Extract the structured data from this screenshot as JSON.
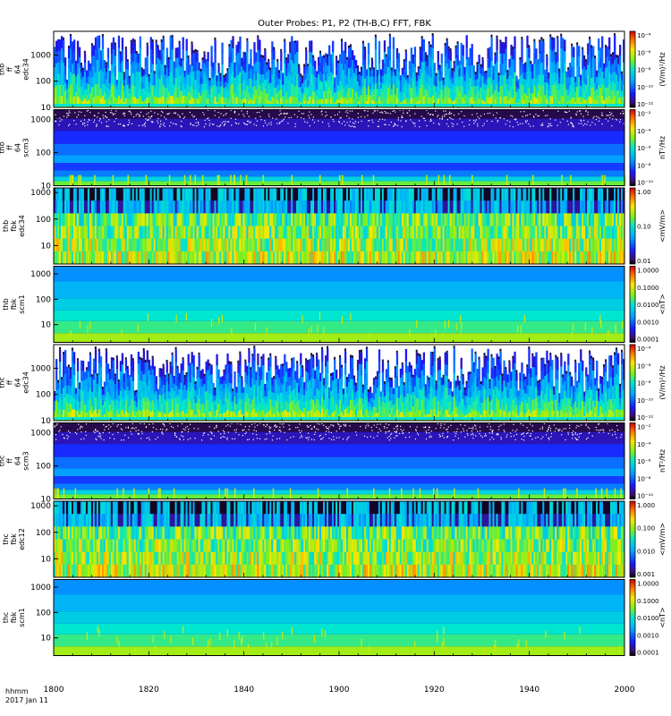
{
  "chart_data": {
    "type": "heatmap",
    "title": "Outer Probes: P1, P2 (TH-B,C) FFT, FBK",
    "x_axis": {
      "range": [
        1800,
        2000
      ],
      "ticks": [
        "1800",
        "1820",
        "1840",
        "1900",
        "1920",
        "1940",
        "2000"
      ],
      "ticks_per_segment": 5
    },
    "footer": {
      "time_format": "hhmm",
      "date": "2017 Jan 11"
    },
    "panels": [
      {
        "id": "thb-ff-64-edc34",
        "ylabel": [
          "thb",
          "ff",
          "64",
          "edc34"
        ],
        "yticks": [
          "10",
          "100",
          "1000"
        ],
        "yrange": [
          10,
          8000
        ],
        "log": true,
        "cbar_ticks": [
          "10⁻⁴",
          "10⁻⁶",
          "10⁻⁸",
          "10⁻¹⁰",
          "10⁻¹²"
        ],
        "cbar_label": "(V/m)²/Hz",
        "style": "burst"
      },
      {
        "id": "thb-ff-64-scm3",
        "ylabel": [
          "thb",
          "ff",
          "64",
          "scm3"
        ],
        "yticks": [
          "10",
          "100",
          "1000"
        ],
        "yrange": [
          10,
          2000
        ],
        "log": true,
        "cbar_ticks": [
          "10⁻²",
          "10⁻⁴",
          "10⁻⁶",
          "10⁻⁸",
          "10⁻¹⁰"
        ],
        "cbar_label": "nT²/Hz",
        "style": "bands"
      },
      {
        "id": "thb-fbk-edc34",
        "ylabel": [
          "thb",
          "fbk",
          "edc34"
        ],
        "yticks": [
          "10",
          "100",
          "1000"
        ],
        "yrange": [
          2,
          1500
        ],
        "log": true,
        "cbar_ticks": [
          "1.00",
          "0.10",
          "0.01"
        ],
        "cbar_label": "<mV/m>",
        "style": "fbk"
      },
      {
        "id": "thb-fbk-scm1",
        "ylabel": [
          "thb",
          "fbk",
          "scm1"
        ],
        "yticks": [
          "10",
          "100",
          "1000"
        ],
        "yrange": [
          2,
          2000
        ],
        "log": true,
        "cbar_ticks": [
          "1.0000",
          "0.1000",
          "0.0100",
          "0.0010",
          "0.0001"
        ],
        "cbar_label": "<nT>",
        "style": "scm"
      },
      {
        "id": "thc-ff-64-edc34",
        "ylabel": [
          "thc",
          "ff",
          "64",
          "edc34"
        ],
        "yticks": [
          "10",
          "100",
          "1000"
        ],
        "yrange": [
          10,
          8000
        ],
        "log": true,
        "cbar_ticks": [
          "10⁻⁴",
          "10⁻⁶",
          "10⁻⁸",
          "10⁻¹⁰",
          "10⁻¹²"
        ],
        "cbar_label": "(V/m)²/Hz",
        "style": "burst"
      },
      {
        "id": "thc-ff-64-scm3",
        "ylabel": [
          "thc",
          "ff",
          "64",
          "scm3"
        ],
        "yticks": [
          "10",
          "100",
          "1000"
        ],
        "yrange": [
          10,
          2000
        ],
        "log": true,
        "cbar_ticks": [
          "10⁻²",
          "10⁻⁴",
          "10⁻⁶",
          "10⁻⁸",
          "10⁻¹⁰"
        ],
        "cbar_label": "nT²/Hz",
        "style": "bands"
      },
      {
        "id": "thc-fbk-edc12",
        "ylabel": [
          "thc",
          "fbk",
          "edc12"
        ],
        "yticks": [
          "10",
          "100",
          "1000"
        ],
        "yrange": [
          2,
          1500
        ],
        "log": true,
        "cbar_ticks": [
          "1.000",
          "0.100",
          "0.010",
          "0.001"
        ],
        "cbar_label": "<mV/m>",
        "style": "fbk"
      },
      {
        "id": "thc-fbk-scm1",
        "ylabel": [
          "thc",
          "fbk",
          "scm1"
        ],
        "yticks": [
          "10",
          "100",
          "1000"
        ],
        "yrange": [
          2,
          2000
        ],
        "log": true,
        "cbar_ticks": [
          "1.0000",
          "0.1000",
          "0.0100",
          "0.0010",
          "0.0001"
        ],
        "cbar_label": "<nT>",
        "style": "scm"
      }
    ]
  }
}
